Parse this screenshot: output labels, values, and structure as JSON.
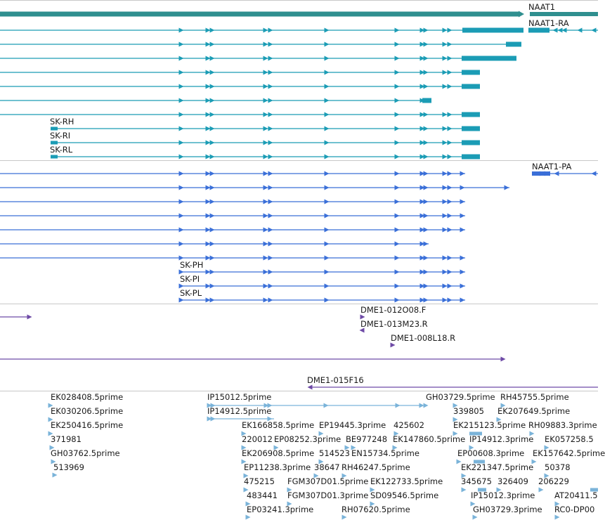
{
  "colors": {
    "gene": "#2f8f8f",
    "transcript_ra": "#1b9cb5",
    "transcript_pa": "#3a6fd8",
    "clone": "#6e4aa6",
    "est": "#7ab3d9",
    "separator": "#c8c8c8"
  },
  "gene": {
    "name": "NAAT1"
  },
  "ra_group": {
    "first_label": "NAAT1-RA",
    "labels": [
      "SK-RH",
      "SK-RI",
      "SK-RL"
    ]
  },
  "pa_group": {
    "first_label": "NAAT1-PA",
    "labels": [
      "SK-PH",
      "SK-PI",
      "SK-PL"
    ]
  },
  "clones": [
    "DME1-012O08.F",
    "DME1-013M23.R",
    "DME1-008L18.R",
    "DME1-015F16"
  ],
  "ests": [
    "EK028408.5prime",
    "EK030206.5prime",
    "EK250416.5prime",
    "371981",
    "GH03762.5prime",
    "513969",
    "IP15012.5prime",
    "IP14912.5prime",
    "EK166858.5prime",
    "EP19445.3prime",
    "425602",
    "220012",
    "EP08252.3prime",
    "BE977248",
    "EK147860.5prime",
    "EK206908.5prime",
    "514523",
    "EN15734.5prime",
    "EP11238.3prime",
    "38647",
    "RH46247.5prime",
    "475215",
    "FGM307D01.5prime",
    "EK122733.5prime",
    "483441",
    "FGM307D01.3prime",
    "SD09546.5prime",
    "EP03241.3prime",
    "RH07620.5prime",
    "GH03729.5prime",
    "RH45755.5prime",
    "339805",
    "EK207649.5prime",
    "EK215123.5prime",
    "RH09883.3prime",
    "IP14912.3prime",
    "EP00608.3prime",
    "EK157642.5prime",
    "EK221347.5prime",
    "50378",
    "345675",
    "326409",
    "206229",
    "IP15012.3prime",
    "AT20411.5",
    "GH03729.3prime",
    "RC0-DP00",
    "EK057258.5"
  ]
}
